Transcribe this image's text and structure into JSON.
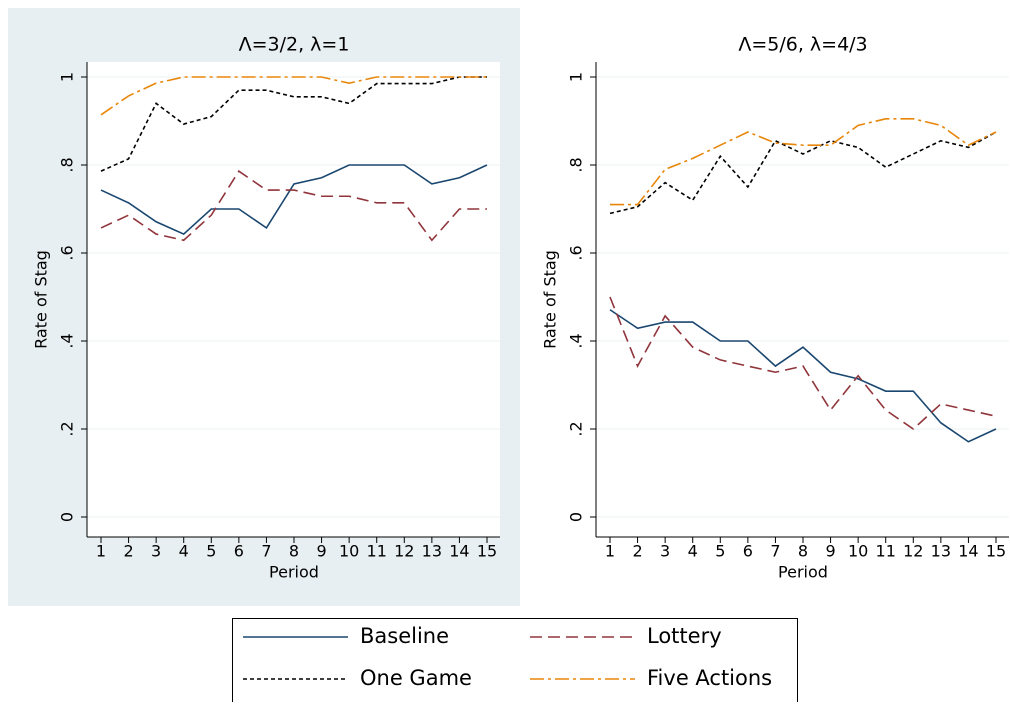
{
  "chart_data": [
    {
      "type": "line",
      "title": "Λ=3/2, λ=1",
      "x_label": "Period",
      "y_label": "Rate of Stag",
      "x": [
        1,
        2,
        3,
        4,
        5,
        6,
        7,
        8,
        9,
        10,
        11,
        12,
        13,
        14,
        15
      ],
      "xlim": [
        1,
        15
      ],
      "xticks": [
        1,
        2,
        3,
        4,
        5,
        6,
        7,
        8,
        9,
        10,
        11,
        12,
        13,
        14,
        15
      ],
      "ylim": [
        0,
        1
      ],
      "yticks": [
        0,
        {
          "value": 0.2,
          "label": ".2"
        },
        {
          "value": 0.4,
          "label": ".4"
        },
        {
          "value": 0.6,
          "label": ".6"
        },
        {
          "value": 0.8,
          "label": ".8"
        },
        1
      ],
      "grid": true,
      "series": [
        {
          "name": "Baseline",
          "color": "#1a476f",
          "values": [
            0.743,
            0.714,
            0.671,
            0.643,
            0.7,
            0.7,
            0.657,
            0.757,
            0.771,
            0.8,
            0.8,
            0.8,
            0.757,
            0.771,
            0.8
          ]
        },
        {
          "name": "Lottery",
          "color": "#90353b",
          "values": [
            0.657,
            0.686,
            0.643,
            0.629,
            0.686,
            0.786,
            0.743,
            0.743,
            0.729,
            0.729,
            0.714,
            0.714,
            0.629,
            0.7,
            0.7
          ]
        },
        {
          "name": "One Game",
          "color": "#000000",
          "values": [
            0.786,
            0.814,
            0.94,
            0.893,
            0.91,
            0.97,
            0.97,
            0.955,
            0.955,
            0.94,
            0.985,
            0.985,
            0.985,
            1,
            1
          ]
        },
        {
          "name": "Five Actions",
          "color": "#e8860a",
          "values": [
            0.914,
            0.957,
            0.986,
            1,
            1,
            1,
            1,
            1,
            1,
            0.986,
            1,
            1,
            1,
            1,
            1
          ]
        }
      ]
    },
    {
      "type": "line",
      "title": "Λ=5/6, λ=4/3",
      "x_label": "Period",
      "y_label": "Rate of Stag",
      "x": [
        1,
        2,
        3,
        4,
        5,
        6,
        7,
        8,
        9,
        10,
        11,
        12,
        13,
        14,
        15
      ],
      "xlim": [
        1,
        15
      ],
      "xticks": [
        1,
        2,
        3,
        4,
        5,
        6,
        7,
        8,
        9,
        10,
        11,
        12,
        13,
        14,
        15
      ],
      "ylim": [
        0,
        1
      ],
      "yticks": [
        0,
        {
          "value": 0.2,
          "label": ".2"
        },
        {
          "value": 0.4,
          "label": ".4"
        },
        {
          "value": 0.6,
          "label": ".6"
        },
        {
          "value": 0.8,
          "label": ".8"
        },
        1
      ],
      "grid": true,
      "series": [
        {
          "color": "#1a476f",
          "values": [
            0.471,
            0.429,
            0.443,
            0.443,
            0.4,
            0.4,
            0.343,
            0.386,
            0.329,
            0.314,
            0.286,
            0.286,
            0.214,
            0.171,
            0.2
          ]
        },
        {
          "color": "#90353b",
          "values": [
            0.5,
            0.343,
            0.457,
            0.386,
            0.357,
            0.343,
            0.329,
            0.343,
            0.243,
            0.321,
            0.243,
            0.2,
            0.257,
            0.243,
            0.229
          ]
        },
        {
          "color": "#000000",
          "values": [
            0.69,
            0.705,
            0.76,
            0.72,
            0.82,
            0.75,
            0.855,
            0.825,
            0.855,
            0.84,
            0.795,
            0.825,
            0.855,
            0.84,
            0.875
          ]
        },
        {
          "color": "#e8860a",
          "values": [
            0.71,
            0.71,
            0.79,
            0.815,
            0.845,
            0.875,
            0.85,
            0.845,
            0.845,
            0.89,
            0.905,
            0.905,
            0.89,
            0.845,
            0.875
          ]
        }
      ]
    }
  ]
}
